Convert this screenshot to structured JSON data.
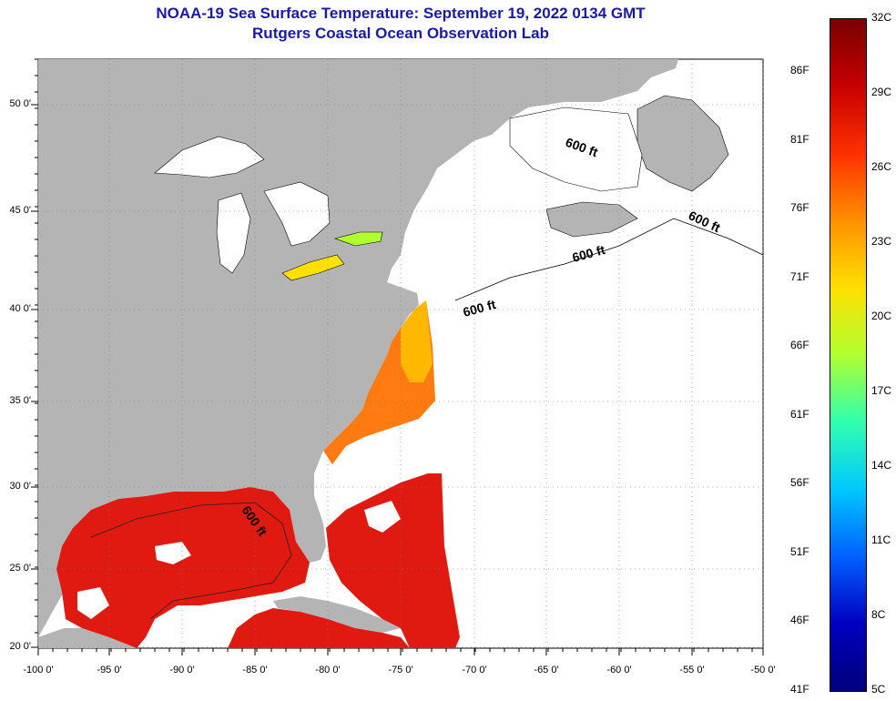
{
  "title": "NOAA-19 Sea Surface Temperature:  September 19, 2022 0134 GMT",
  "subtitle": "Rutgers Coastal Ocean Observation Lab",
  "lat_labels": [
    "50 0'",
    "45 0'",
    "40 0'",
    "35 0'",
    "30 0'",
    "25 0'",
    "20 0'"
  ],
  "lon_labels": [
    "-100 0'",
    "-95 0'",
    "-90 0'",
    "-85 0'",
    "-80 0'",
    "-75 0'",
    "-70 0'",
    "-65 0'",
    "-60 0'",
    "-55 0'",
    "-50 0'"
  ],
  "contour_label": "600 ft",
  "colorbar": {
    "fahrenheit": [
      "86F",
      "81F",
      "76F",
      "71F",
      "66F",
      "61F",
      "56F",
      "51F",
      "46F",
      "41F"
    ],
    "celsius": [
      "32C",
      "29C",
      "26C",
      "23C",
      "20C",
      "17C",
      "14C",
      "11C",
      "8C",
      "5C"
    ],
    "colors": [
      "#7a0000",
      "#c80000",
      "#ff3000",
      "#ff9000",
      "#ffe000",
      "#b0ff30",
      "#30ffb0",
      "#00c8ff",
      "#0060ff",
      "#0000c0",
      "#00007a"
    ]
  },
  "colors": {
    "land": "#b4b4b4",
    "no_data": "#ffffff",
    "warm_sst": "#e01a10",
    "title": "#1a1aa8"
  }
}
